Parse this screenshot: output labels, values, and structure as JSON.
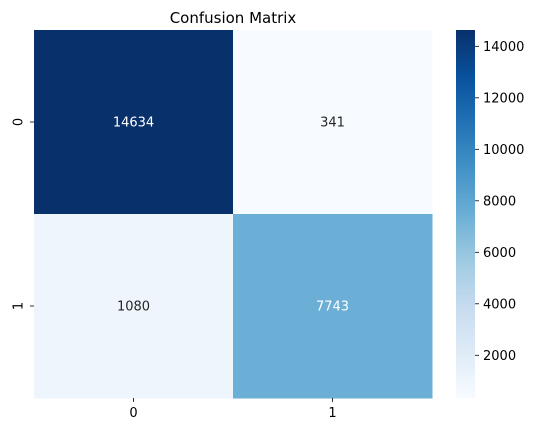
{
  "chart_data": {
    "type": "heatmap",
    "title": "Confusion Matrix",
    "xlabel": "",
    "ylabel": "",
    "x_categories": [
      "0",
      "1"
    ],
    "y_categories": [
      "0",
      "1"
    ],
    "values": [
      [
        14634,
        341
      ],
      [
        1080,
        7743
      ]
    ],
    "colormap": "Blues",
    "colorbar": {
      "range": [
        341,
        14634
      ],
      "ticks": [
        2000,
        4000,
        6000,
        8000,
        10000,
        12000,
        14000
      ],
      "tick_labels": [
        "2000",
        "4000",
        "6000",
        "8000",
        "10000",
        "12000",
        "14000"
      ]
    },
    "cell_colors": {
      "14634": "#08306b",
      "341": "#f7fbff",
      "1080": "#eef5fd",
      "7743": "#6baed6"
    }
  }
}
